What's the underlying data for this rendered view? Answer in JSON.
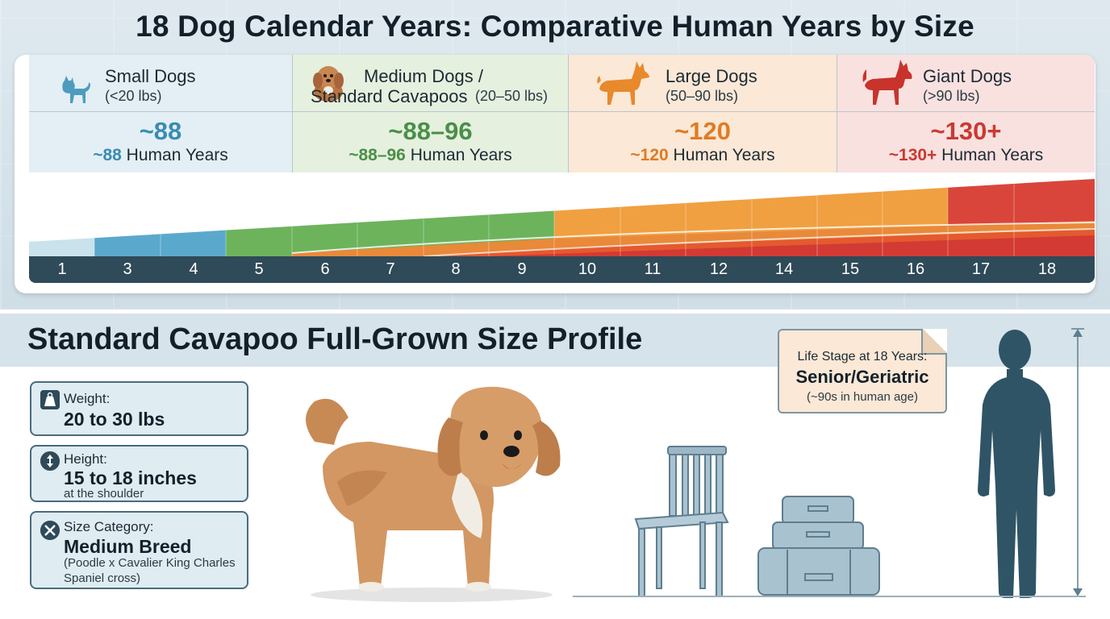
{
  "title": "18 Dog Calendar Years: Comparative Human Years by Size",
  "categories": [
    {
      "name": "Small Dogs",
      "range": "(<20 lbs)",
      "big": "~88",
      "human_value": "~88",
      "human_suffix": " Human Years",
      "color": "#3a8bb1",
      "icon": "small-dog-icon"
    },
    {
      "name_line1": "Medium Dogs /",
      "name_line2": "Standard Cavapoos",
      "range": "(20–50 lbs)",
      "big": "~88–96",
      "human_value": "~88–96",
      "human_suffix": " Human Years",
      "color": "#4a8f47",
      "icon": "cavapoo-icon"
    },
    {
      "name": "Large Dogs",
      "range": "(50–90 lbs)",
      "big": "~120",
      "human_value": "~120",
      "human_suffix": " Human Years",
      "color": "#e07b23",
      "icon": "large-dog-icon"
    },
    {
      "name": "Giant Dogs",
      "range": "(>90 lbs)",
      "big": "~130+",
      "human_value": "~130+",
      "human_suffix": " Human Years",
      "color": "#c93a32",
      "icon": "giant-dog-icon"
    }
  ],
  "axis_ticks": [
    "1",
    "3",
    "4",
    "5",
    "6",
    "7",
    "8",
    "9",
    "10",
    "11",
    "12",
    "14",
    "15",
    "16",
    "17",
    "18"
  ],
  "colors": {
    "small": "#5aa9cc",
    "medium": "#6db35c",
    "large": "#f0a040",
    "giant": "#d9453b",
    "axis": "#2f4a58"
  },
  "section_title": "Standard Cavapoo Full-Grown Size Profile",
  "weight": {
    "label": "Weight:",
    "value": "20 to 30 lbs",
    "icon": "weight-icon"
  },
  "height": {
    "label": "Height:",
    "value": "15 to 18 inches",
    "note": "at the shoulder",
    "icon": "height-arrow-icon"
  },
  "size_category": {
    "label": "Size Category:",
    "value": "Medium Breed",
    "note_line1": "(Poodle x Cavalier King Charles",
    "note_line2": "Spaniel cross)",
    "icon": "size-category-icon"
  },
  "life_stage": {
    "label": "Life Stage at 18 Years:",
    "value": "Senior/Geriatric",
    "sub": "(~90s in human age)"
  }
}
